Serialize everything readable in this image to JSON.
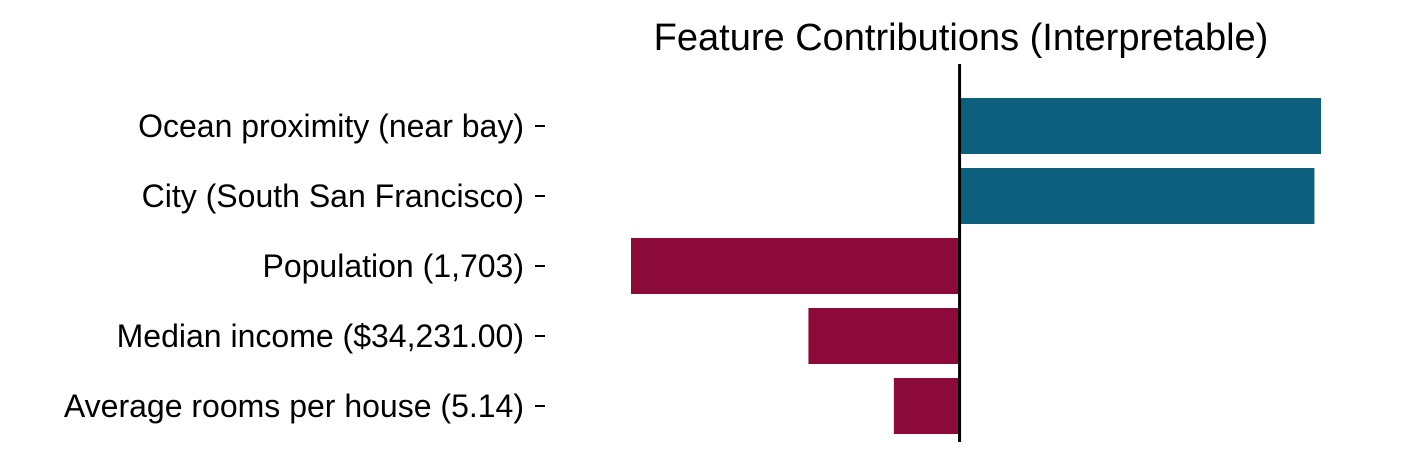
{
  "chart_data": {
    "type": "bar",
    "orientation": "horizontal",
    "title": "Feature Contributions (Interpretable)",
    "xlabel": "",
    "ylabel": "",
    "categories": [
      "Ocean proximity (near bay)",
      "City (South San Francisco)",
      "Population (1,703)",
      "Median income ($34,231.00)",
      "Average rooms per house (5.14)"
    ],
    "values": [
      1.1,
      1.08,
      -1.0,
      -0.46,
      -0.2
    ],
    "xlim": [
      -1.0,
      1.1
    ],
    "colors": {
      "positive": "#0c5f7d",
      "negative": "#8b0a3a",
      "zero_line": "#000000"
    },
    "grid": false,
    "legend": "none"
  }
}
